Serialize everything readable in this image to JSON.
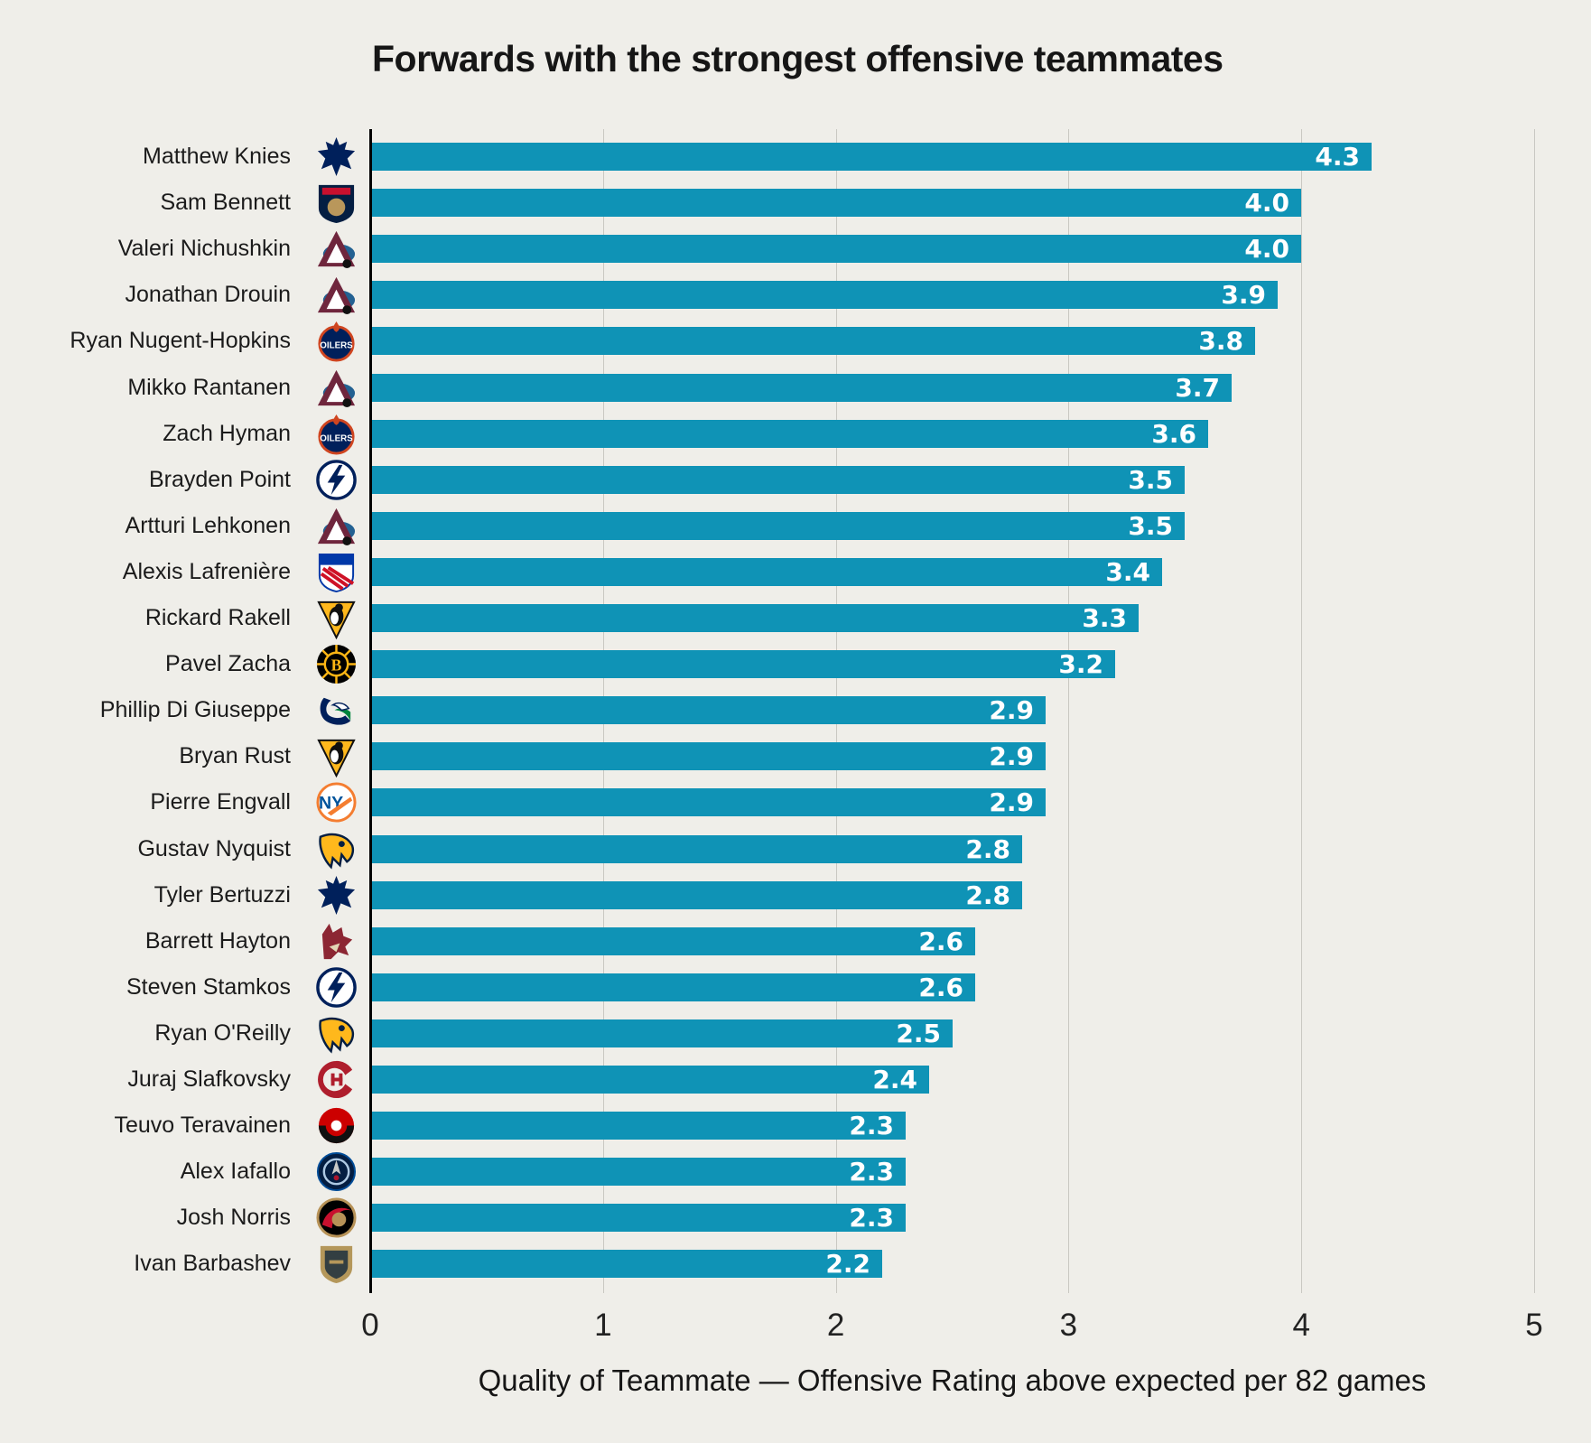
{
  "chart_data": {
    "type": "bar",
    "orientation": "horizontal",
    "title": "Forwards with the strongest offensive teammates",
    "xlabel": "Quality of Teammate — Offensive Rating above expected per 82 games",
    "xlim": [
      0,
      5
    ],
    "x_ticks": [
      "0",
      "1",
      "2",
      "3",
      "4",
      "5"
    ],
    "grid": "vertical-gridlines-behind-bars",
    "bar_color": "#0f93b6",
    "value_label_color": "#ffffff",
    "background_color": "#efeee9",
    "categories": [
      "Matthew Knies",
      "Sam Bennett",
      "Valeri Nichushkin",
      "Jonathan Drouin",
      "Ryan Nugent-Hopkins",
      "Mikko Rantanen",
      "Zach Hyman",
      "Brayden Point",
      "Artturi Lehkonen",
      "Alexis Lafrenière",
      "Rickard Rakell",
      "Pavel Zacha",
      "Phillip Di Giuseppe",
      "Bryan Rust",
      "Pierre Engvall",
      "Gustav Nyquist",
      "Tyler Bertuzzi",
      "Barrett Hayton",
      "Steven Stamkos",
      "Ryan O'Reilly",
      "Juraj Slafkovsky",
      "Teuvo Teravainen",
      "Alex Iafallo",
      "Josh Norris",
      "Ivan Barbashev"
    ],
    "values": [
      4.3,
      4.0,
      4.0,
      3.9,
      3.8,
      3.7,
      3.6,
      3.5,
      3.5,
      3.4,
      3.3,
      3.2,
      2.9,
      2.9,
      2.9,
      2.8,
      2.8,
      2.6,
      2.6,
      2.5,
      2.4,
      2.3,
      2.3,
      2.3,
      2.2
    ],
    "players": [
      {
        "name": "Matthew Knies",
        "team": "Toronto Maple Leafs",
        "logo": "toronto-maple-leafs",
        "value": 4.3,
        "label": "4.3"
      },
      {
        "name": "Sam Bennett",
        "team": "Florida Panthers",
        "logo": "florida-panthers",
        "value": 4.0,
        "label": "4.0"
      },
      {
        "name": "Valeri Nichushkin",
        "team": "Colorado Avalanche",
        "logo": "colorado-avalanche",
        "value": 4.0,
        "label": "4.0"
      },
      {
        "name": "Jonathan Drouin",
        "team": "Colorado Avalanche",
        "logo": "colorado-avalanche",
        "value": 3.9,
        "label": "3.9"
      },
      {
        "name": "Ryan Nugent-Hopkins",
        "team": "Edmonton Oilers",
        "logo": "edmonton-oilers",
        "value": 3.8,
        "label": "3.8"
      },
      {
        "name": "Mikko Rantanen",
        "team": "Colorado Avalanche",
        "logo": "colorado-avalanche",
        "value": 3.7,
        "label": "3.7"
      },
      {
        "name": "Zach Hyman",
        "team": "Edmonton Oilers",
        "logo": "edmonton-oilers",
        "value": 3.6,
        "label": "3.6"
      },
      {
        "name": "Brayden Point",
        "team": "Tampa Bay Lightning",
        "logo": "tampa-bay-lightning",
        "value": 3.5,
        "label": "3.5"
      },
      {
        "name": "Artturi Lehkonen",
        "team": "Colorado Avalanche",
        "logo": "colorado-avalanche",
        "value": 3.5,
        "label": "3.5"
      },
      {
        "name": "Alexis Lafrenière",
        "team": "New York Rangers",
        "logo": "new-york-rangers",
        "value": 3.4,
        "label": "3.4"
      },
      {
        "name": "Rickard Rakell",
        "team": "Pittsburgh Penguins",
        "logo": "pittsburgh-penguins",
        "value": 3.3,
        "label": "3.3"
      },
      {
        "name": "Pavel Zacha",
        "team": "Boston Bruins",
        "logo": "boston-bruins",
        "value": 3.2,
        "label": "3.2"
      },
      {
        "name": "Phillip Di Giuseppe",
        "team": "Vancouver Canucks",
        "logo": "vancouver-canucks",
        "value": 2.9,
        "label": "2.9"
      },
      {
        "name": "Bryan Rust",
        "team": "Pittsburgh Penguins",
        "logo": "pittsburgh-penguins",
        "value": 2.9,
        "label": "2.9"
      },
      {
        "name": "Pierre Engvall",
        "team": "New York Islanders",
        "logo": "new-york-islanders",
        "value": 2.9,
        "label": "2.9"
      },
      {
        "name": "Gustav Nyquist",
        "team": "Nashville Predators",
        "logo": "nashville-predators",
        "value": 2.8,
        "label": "2.8"
      },
      {
        "name": "Tyler Bertuzzi",
        "team": "Toronto Maple Leafs",
        "logo": "toronto-maple-leafs",
        "value": 2.8,
        "label": "2.8"
      },
      {
        "name": "Barrett Hayton",
        "team": "Arizona Coyotes",
        "logo": "arizona-coyotes",
        "value": 2.6,
        "label": "2.6"
      },
      {
        "name": "Steven Stamkos",
        "team": "Tampa Bay Lightning",
        "logo": "tampa-bay-lightning",
        "value": 2.6,
        "label": "2.6"
      },
      {
        "name": "Ryan O'Reilly",
        "team": "Nashville Predators",
        "logo": "nashville-predators",
        "value": 2.5,
        "label": "2.5"
      },
      {
        "name": "Juraj Slafkovsky",
        "team": "Montreal Canadiens",
        "logo": "montreal-canadiens",
        "value": 2.4,
        "label": "2.4"
      },
      {
        "name": "Teuvo Teravainen",
        "team": "Carolina Hurricanes",
        "logo": "carolina-hurricanes",
        "value": 2.3,
        "label": "2.3"
      },
      {
        "name": "Alex Iafallo",
        "team": "Winnipeg Jets",
        "logo": "winnipeg-jets",
        "value": 2.3,
        "label": "2.3"
      },
      {
        "name": "Josh Norris",
        "team": "Ottawa Senators",
        "logo": "ottawa-senators",
        "value": 2.3,
        "label": "2.3"
      },
      {
        "name": "Ivan Barbashev",
        "team": "Vegas Golden Knights",
        "logo": "vegas-golden-knights",
        "value": 2.2,
        "label": "2.2"
      }
    ]
  }
}
